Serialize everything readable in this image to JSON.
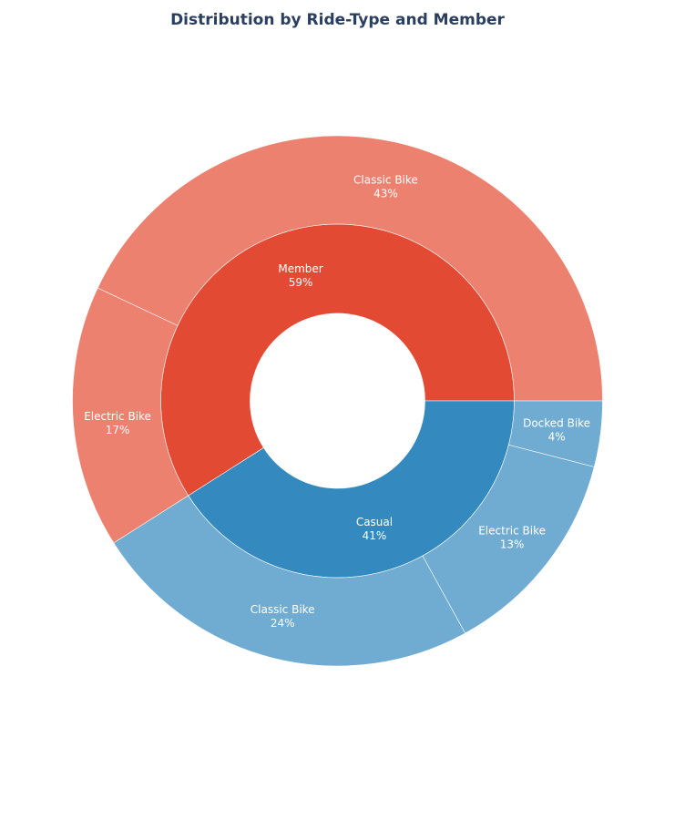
{
  "chart_data": {
    "type": "sunburst",
    "title": "Distribution by Ride-Type and Member",
    "inner_ring": [
      {
        "label": "Member",
        "percent": "59%",
        "value": 59,
        "color": "#e34a33"
      },
      {
        "label": "Casual",
        "percent": "41%",
        "value": 41,
        "color": "#3489be"
      }
    ],
    "outer_ring": [
      {
        "parent": "Member",
        "label": "Classic Bike",
        "percent": "43%",
        "value": 43,
        "color": "#ec8170"
      },
      {
        "parent": "Member",
        "label": "Electric Bike",
        "percent": "17%",
        "value": 17,
        "color": "#ec8170"
      },
      {
        "parent": "Casual",
        "label": "Classic Bike",
        "percent": "24%",
        "value": 24,
        "color": "#70acd2"
      },
      {
        "parent": "Casual",
        "label": "Electric Bike",
        "percent": "13%",
        "value": 13,
        "color": "#70acd2"
      },
      {
        "parent": "Casual",
        "label": "Docked Bike",
        "percent": "4%",
        "value": 4,
        "color": "#70acd2"
      }
    ]
  }
}
